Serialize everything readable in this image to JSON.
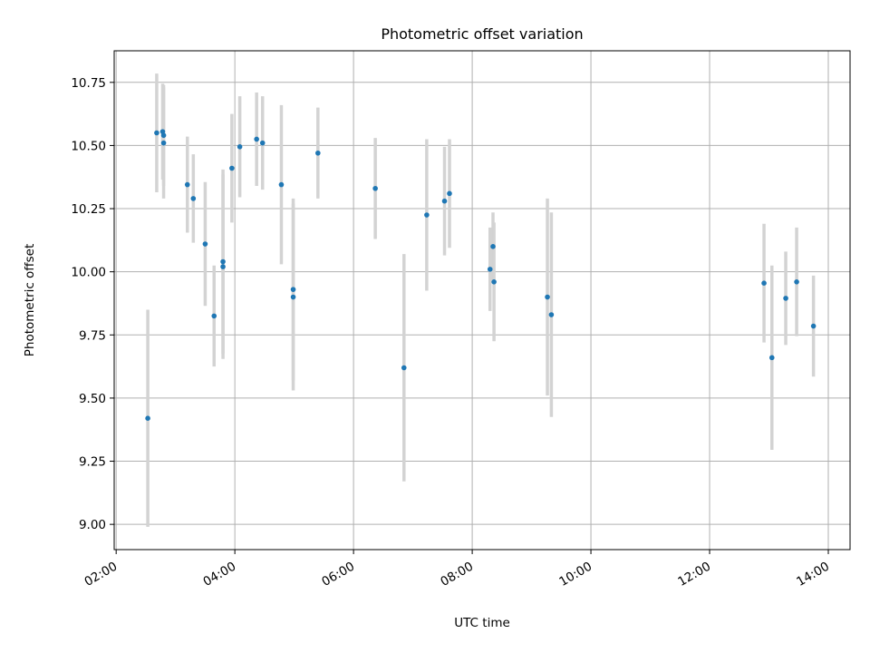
{
  "chart_data": {
    "type": "scatter",
    "title": "Photometric offset variation",
    "xlabel": "UTC time",
    "ylabel": "Photometric offset",
    "xlim": [
      "01:58",
      "14:22"
    ],
    "ylim": [
      8.9,
      10.875
    ],
    "x_ticks": [
      "02:00",
      "04:00",
      "06:00",
      "08:00",
      "10:00",
      "12:00",
      "14:00"
    ],
    "y_ticks": [
      "9.00",
      "9.25",
      "9.50",
      "9.75",
      "10.00",
      "10.25",
      "10.50",
      "10.75"
    ],
    "grid": true,
    "colors": {
      "point": "#1f77b4",
      "errorbar": "#d3d3d3",
      "grid": "#b0b0b0"
    },
    "series": [
      {
        "error_bars": true,
        "points": [
          {
            "x": "02:32",
            "y": 9.42,
            "yerr": 0.43
          },
          {
            "x": "02:41",
            "y": 10.55,
            "yerr": 0.235
          },
          {
            "x": "02:47",
            "y": 10.555,
            "yerr": 0.19
          },
          {
            "x": "02:48",
            "y": 10.54,
            "yerr": 0.2
          },
          {
            "x": "02:48",
            "y": 10.51,
            "yerr": 0.22
          },
          {
            "x": "03:12",
            "y": 10.345,
            "yerr": 0.19
          },
          {
            "x": "03:18",
            "y": 10.29,
            "yerr": 0.175
          },
          {
            "x": "03:30",
            "y": 10.11,
            "yerr": 0.245
          },
          {
            "x": "03:39",
            "y": 9.825,
            "yerr": 0.2
          },
          {
            "x": "03:48",
            "y": 10.04,
            "yerr": 0.365
          },
          {
            "x": "03:48",
            "y": 10.02,
            "yerr": 0.365
          },
          {
            "x": "03:57",
            "y": 10.41,
            "yerr": 0.215
          },
          {
            "x": "04:05",
            "y": 10.495,
            "yerr": 0.2
          },
          {
            "x": "04:22",
            "y": 10.525,
            "yerr": 0.185
          },
          {
            "x": "04:28",
            "y": 10.51,
            "yerr": 0.185
          },
          {
            "x": "04:47",
            "y": 10.345,
            "yerr": 0.315
          },
          {
            "x": "04:59",
            "y": 9.93,
            "yerr": 0.36
          },
          {
            "x": "04:59",
            "y": 9.9,
            "yerr": 0.37
          },
          {
            "x": "05:24",
            "y": 10.47,
            "yerr": 0.18
          },
          {
            "x": "06:22",
            "y": 10.33,
            "yerr": 0.2
          },
          {
            "x": "06:51",
            "y": 9.62,
            "yerr": 0.45
          },
          {
            "x": "07:14",
            "y": 10.225,
            "yerr": 0.3
          },
          {
            "x": "07:32",
            "y": 10.28,
            "yerr": 0.215
          },
          {
            "x": "07:37",
            "y": 10.31,
            "yerr": 0.215
          },
          {
            "x": "08:18",
            "y": 10.01,
            "yerr": 0.165
          },
          {
            "x": "08:21",
            "y": 10.1,
            "yerr": 0.135
          },
          {
            "x": "08:22",
            "y": 9.96,
            "yerr": 0.235
          },
          {
            "x": "09:16",
            "y": 9.9,
            "yerr": 0.39
          },
          {
            "x": "09:20",
            "y": 9.83,
            "yerr": 0.405
          },
          {
            "x": "12:55",
            "y": 9.955,
            "yerr": 0.235
          },
          {
            "x": "13:03",
            "y": 9.66,
            "yerr": 0.365
          },
          {
            "x": "13:17",
            "y": 9.895,
            "yerr": 0.185
          },
          {
            "x": "13:28",
            "y": 9.96,
            "yerr": 0.215
          },
          {
            "x": "13:45",
            "y": 9.785,
            "yerr": 0.2
          }
        ]
      }
    ]
  }
}
